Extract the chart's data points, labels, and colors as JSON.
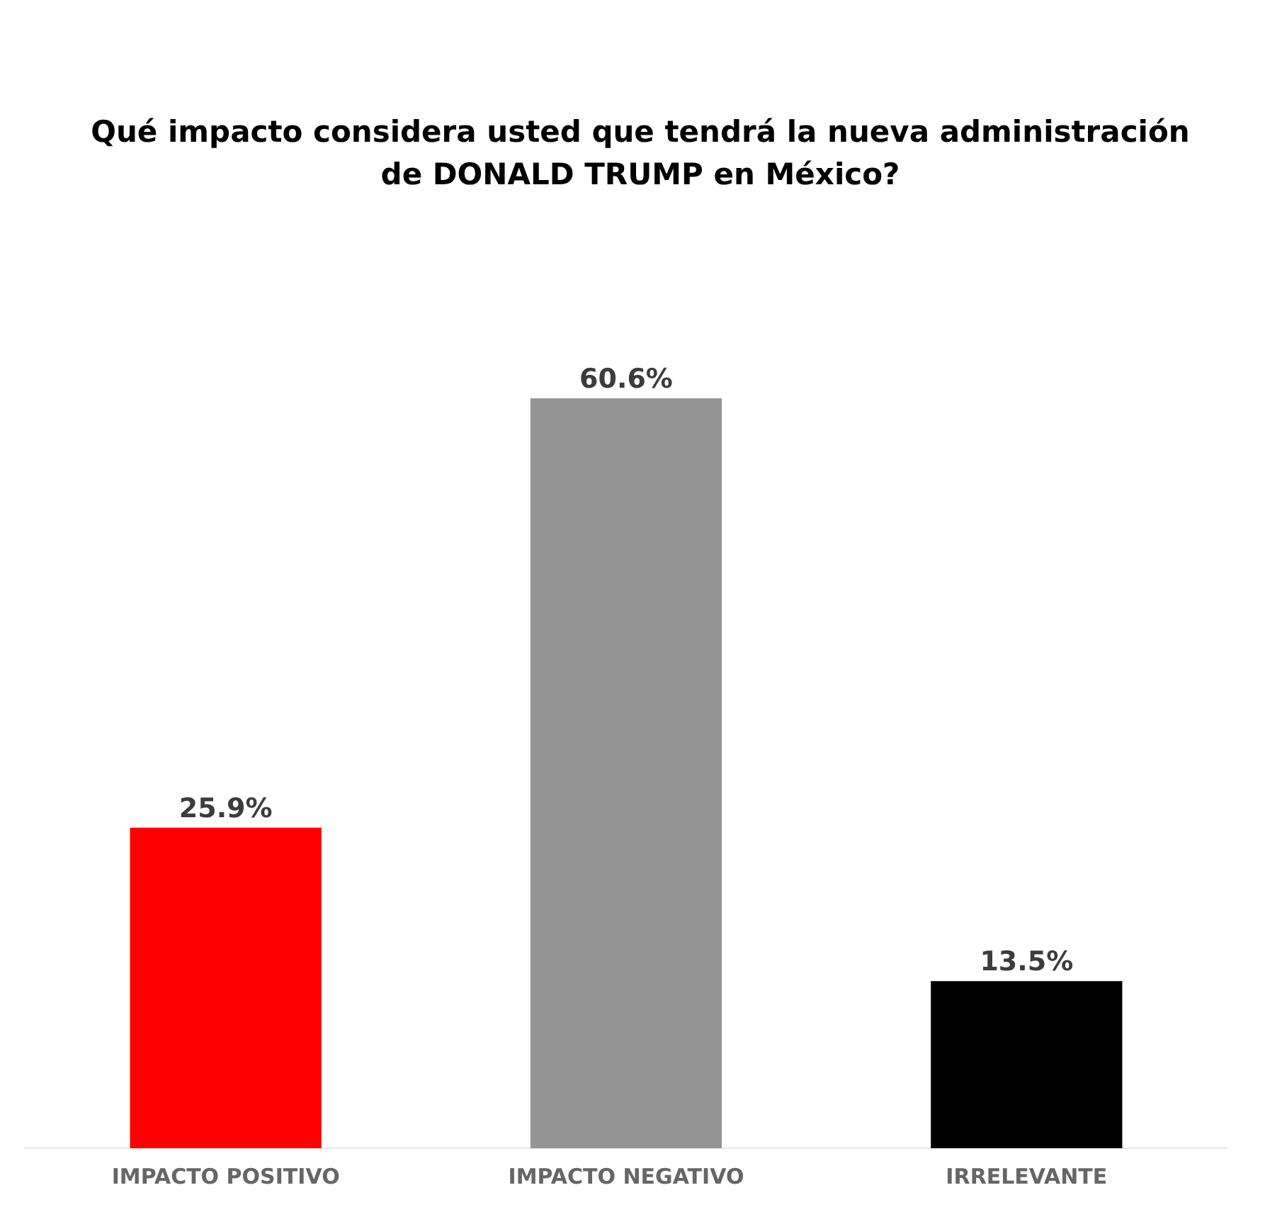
{
  "chart_data": {
    "type": "bar",
    "title": "Qué impacto considera usted que tendrá la nueva administración de DONALD TRUMP en México?",
    "categories": [
      "IMPACTO POSITIVO",
      "IMPACTO NEGATIVO",
      "IRRELEVANTE"
    ],
    "values": [
      25.9,
      60.6,
      13.5
    ],
    "colors": [
      "#ff0000",
      "#949494",
      "#000000"
    ],
    "value_labels": [
      "25.9%",
      "60.6%",
      "13.5%"
    ],
    "tick_labels": "x"
  }
}
